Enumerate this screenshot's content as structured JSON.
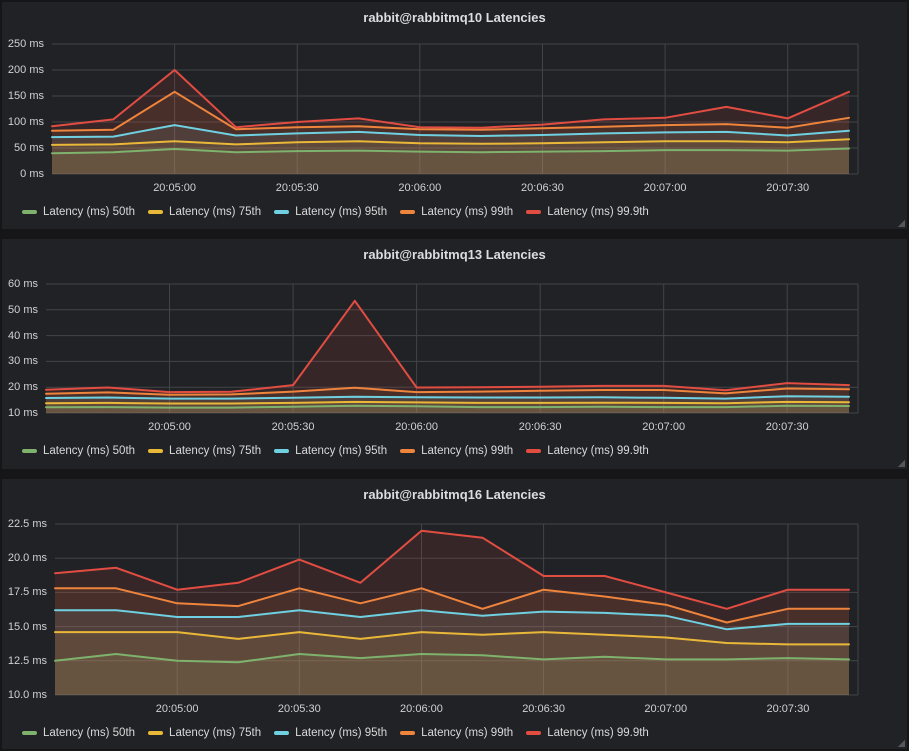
{
  "colors": {
    "page_bg": "#161618",
    "panel_bg": "#212226",
    "grid": "#434448",
    "text": "#d8d9da",
    "p50": "#7EB26D",
    "p75": "#EAB839",
    "p95": "#6ED0E0",
    "p99": "#EF843C",
    "p999": "#E24D42"
  },
  "chart_data": [
    {
      "type": "area",
      "title": "rabbit@rabbitmq10 Latencies",
      "unit": "ms",
      "grid": true,
      "legend_position": "bottom",
      "fill_alpha": 0.11,
      "x": [
        "20:04:30",
        "20:04:45",
        "20:05:00",
        "20:05:15",
        "20:05:30",
        "20:05:45",
        "20:06:00",
        "20:06:15",
        "20:06:30",
        "20:06:45",
        "20:07:00",
        "20:07:15",
        "20:07:30",
        "20:07:45"
      ],
      "x_tick_labels": [
        "20:05:00",
        "20:05:30",
        "20:06:00",
        "20:06:30",
        "20:07:00",
        "20:07:30"
      ],
      "x_tick_indices": [
        2,
        4,
        6,
        8,
        10,
        12
      ],
      "ylim": [
        0,
        250
      ],
      "y_tick_values": [
        0,
        50,
        100,
        150,
        200,
        250
      ],
      "y_tick_labels": [
        "0 ms",
        "50 ms",
        "100 ms",
        "150 ms",
        "200 ms",
        "250 ms"
      ],
      "series": [
        {
          "name": "Latency (ms) 50th",
          "color": "#7EB26D",
          "values": [
            40,
            42,
            48,
            42,
            44,
            45,
            43,
            42,
            43,
            44,
            46,
            46,
            45,
            49
          ]
        },
        {
          "name": "Latency (ms) 75th",
          "color": "#EAB839",
          "values": [
            56,
            57,
            63,
            57,
            61,
            63,
            59,
            58,
            59,
            61,
            63,
            63,
            61,
            67
          ]
        },
        {
          "name": "Latency (ms) 95th",
          "color": "#6ED0E0",
          "values": [
            71,
            72,
            94,
            74,
            78,
            81,
            75,
            73,
            75,
            78,
            80,
            81,
            74,
            83
          ]
        },
        {
          "name": "Latency (ms) 99th",
          "color": "#EF843C",
          "values": [
            83,
            85,
            158,
            86,
            90,
            92,
            86,
            85,
            88,
            91,
            94,
            96,
            89,
            108
          ]
        },
        {
          "name": "Latency (ms) 99.9th",
          "color": "#E24D42",
          "values": [
            92,
            105,
            200,
            90,
            100,
            107,
            90,
            89,
            95,
            105,
            108,
            129,
            107,
            158
          ]
        }
      ]
    },
    {
      "type": "area",
      "title": "rabbit@rabbitmq13 Latencies",
      "unit": "ms",
      "grid": true,
      "legend_position": "bottom",
      "fill_alpha": 0.11,
      "x": [
        "20:04:30",
        "20:04:45",
        "20:05:00",
        "20:05:15",
        "20:05:30",
        "20:05:45",
        "20:06:00",
        "20:06:15",
        "20:06:30",
        "20:06:45",
        "20:07:00",
        "20:07:15",
        "20:07:30",
        "20:07:45"
      ],
      "x_tick_labels": [
        "20:05:00",
        "20:05:30",
        "20:06:00",
        "20:06:30",
        "20:07:00",
        "20:07:30"
      ],
      "x_tick_indices": [
        2,
        4,
        6,
        8,
        10,
        12
      ],
      "ylim": [
        10,
        60
      ],
      "y_tick_values": [
        10,
        20,
        30,
        40,
        50,
        60
      ],
      "y_tick_labels": [
        "10 ms",
        "20 ms",
        "30 ms",
        "40 ms",
        "50 ms",
        "60 ms"
      ],
      "series": [
        {
          "name": "Latency (ms) 50th",
          "color": "#7EB26D",
          "values": [
            12.2,
            12.3,
            12.1,
            12.1,
            12.4,
            12.8,
            12.6,
            12.3,
            12.3,
            12.4,
            12.3,
            12.3,
            12.8,
            12.7
          ]
        },
        {
          "name": "Latency (ms) 75th",
          "color": "#EAB839",
          "values": [
            13.8,
            13.9,
            13.7,
            13.7,
            13.9,
            14.3,
            14.1,
            13.9,
            13.9,
            14.0,
            13.9,
            13.8,
            14.3,
            14.2
          ]
        },
        {
          "name": "Latency (ms) 95th",
          "color": "#6ED0E0",
          "values": [
            15.8,
            16.0,
            15.6,
            15.6,
            15.9,
            16.3,
            16.1,
            16.0,
            16.0,
            16.1,
            15.9,
            15.6,
            16.5,
            16.3
          ]
        },
        {
          "name": "Latency (ms) 99th",
          "color": "#EF843C",
          "values": [
            17.5,
            18.0,
            17.1,
            17.2,
            18.3,
            19.8,
            18.1,
            18.3,
            18.6,
            18.9,
            18.9,
            17.6,
            19.5,
            19.2
          ]
        },
        {
          "name": "Latency (ms) 99.9th",
          "color": "#E24D42",
          "values": [
            19.0,
            19.9,
            18.1,
            18.2,
            20.8,
            53.5,
            19.9,
            20.0,
            20.2,
            20.5,
            20.5,
            18.8,
            21.6,
            20.8
          ]
        }
      ]
    },
    {
      "type": "area",
      "title": "rabbit@rabbitmq16 Latencies",
      "unit": "ms",
      "grid": true,
      "legend_position": "bottom",
      "fill_alpha": 0.11,
      "x": [
        "20:04:30",
        "20:04:45",
        "20:05:00",
        "20:05:15",
        "20:05:30",
        "20:05:45",
        "20:06:00",
        "20:06:15",
        "20:06:30",
        "20:06:45",
        "20:07:00",
        "20:07:15",
        "20:07:30",
        "20:07:45"
      ],
      "x_tick_labels": [
        "20:05:00",
        "20:05:30",
        "20:06:00",
        "20:06:30",
        "20:07:00",
        "20:07:30"
      ],
      "x_tick_indices": [
        2,
        4,
        6,
        8,
        10,
        12
      ],
      "ylim": [
        10,
        22.5
      ],
      "y_tick_values": [
        10,
        12.5,
        15,
        17.5,
        20,
        22.5
      ],
      "y_tick_labels": [
        "10.0 ms",
        "12.5 ms",
        "15.0 ms",
        "17.5 ms",
        "20.0 ms",
        "22.5 ms"
      ],
      "series": [
        {
          "name": "Latency (ms) 50th",
          "color": "#7EB26D",
          "values": [
            12.5,
            13.0,
            12.5,
            12.4,
            13.0,
            12.7,
            13.0,
            12.9,
            12.6,
            12.8,
            12.6,
            12.6,
            12.7,
            12.6
          ]
        },
        {
          "name": "Latency (ms) 75th",
          "color": "#EAB839",
          "values": [
            14.6,
            14.6,
            14.6,
            14.1,
            14.6,
            14.1,
            14.6,
            14.4,
            14.6,
            14.4,
            14.2,
            13.8,
            13.7,
            13.7
          ]
        },
        {
          "name": "Latency (ms) 95th",
          "color": "#6ED0E0",
          "values": [
            16.2,
            16.2,
            15.7,
            15.7,
            16.2,
            15.7,
            16.2,
            15.8,
            16.1,
            16.0,
            15.8,
            14.8,
            15.2,
            15.2
          ]
        },
        {
          "name": "Latency (ms) 99th",
          "color": "#EF843C",
          "values": [
            17.8,
            17.8,
            16.7,
            16.5,
            17.8,
            16.7,
            17.8,
            16.3,
            17.7,
            17.2,
            16.6,
            15.3,
            16.3,
            16.3
          ]
        },
        {
          "name": "Latency (ms) 99.9th",
          "color": "#E24D42",
          "values": [
            18.9,
            19.3,
            17.7,
            18.2,
            19.9,
            18.2,
            22.0,
            21.5,
            18.7,
            18.7,
            17.5,
            16.3,
            17.7,
            17.7
          ]
        }
      ]
    }
  ]
}
